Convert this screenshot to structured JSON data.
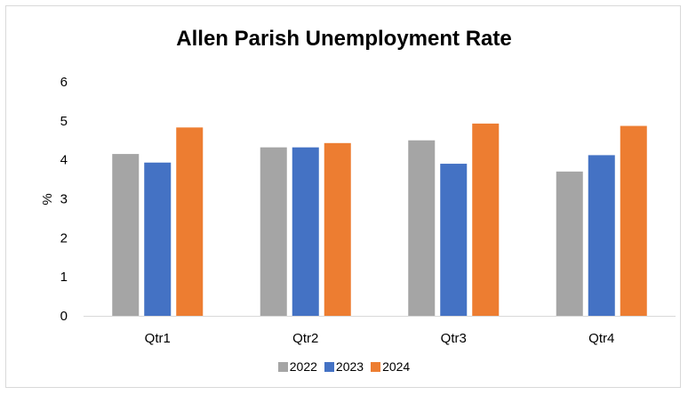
{
  "chart_data": {
    "type": "bar",
    "title": "Allen Parish Unemployment Rate",
    "ylabel": "%",
    "xlabel": "",
    "ylim": [
      0,
      6
    ],
    "yticks": [
      0,
      1,
      2,
      3,
      4,
      5,
      6
    ],
    "categories": [
      "Qtr1",
      "Qtr2",
      "Qtr3",
      "Qtr4"
    ],
    "series": [
      {
        "name": "2022",
        "color": "#A5A5A5",
        "values": [
          4.15,
          4.32,
          4.5,
          3.7
        ]
      },
      {
        "name": "2023",
        "color": "#4472C4",
        "values": [
          3.93,
          4.32,
          3.9,
          4.12
        ]
      },
      {
        "name": "2024",
        "color": "#ED7D31",
        "values": [
          4.83,
          4.43,
          4.93,
          4.87
        ]
      }
    ],
    "legend_position": "bottom",
    "grid": false
  }
}
